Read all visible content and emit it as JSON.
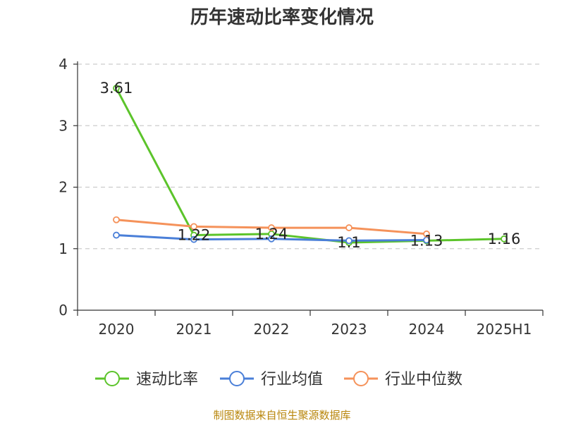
{
  "title": "历年速动比率变化情况",
  "source_note": "制图数据来自恒生聚源数据库",
  "chart_data": {
    "type": "line",
    "title": "历年速动比率变化情况",
    "categories": [
      "2020",
      "2021",
      "2022",
      "2023",
      "2024",
      "2025H1"
    ],
    "y_ticks": [
      "0",
      "1",
      "2",
      "3",
      "4"
    ],
    "ylim": [
      0,
      4
    ],
    "grid": "horizontal-dashed",
    "legend_position": "bottom",
    "series": [
      {
        "name": "速动比率",
        "color": "#5cc42b",
        "values": [
          3.61,
          1.22,
          1.24,
          1.1,
          1.13,
          1.16
        ],
        "labels": [
          "3.61",
          "1.22",
          "1.24",
          "1.1",
          "1.13",
          "1.16"
        ]
      },
      {
        "name": "行业均值",
        "color": "#4a7fd8",
        "values": [
          1.22,
          1.15,
          1.16,
          1.13,
          1.14,
          null
        ]
      },
      {
        "name": "行业中位数",
        "color": "#f5925a",
        "values": [
          1.47,
          1.36,
          1.34,
          1.34,
          1.24,
          null
        ]
      }
    ]
  }
}
